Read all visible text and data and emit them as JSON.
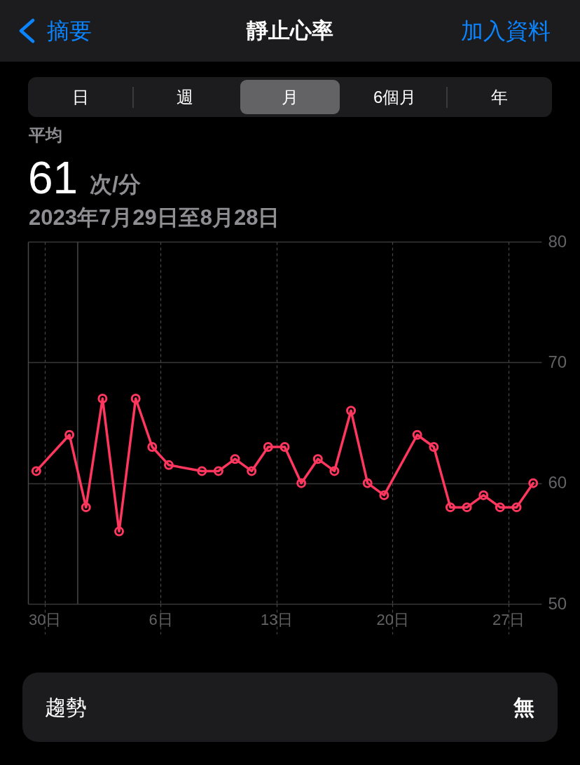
{
  "chart_data": {
    "type": "line",
    "title": "靜止心率",
    "subtitle": "2023年7月29日至8月28日",
    "annotations": [
      "摘要",
      "加入資料",
      "日",
      "週",
      "月",
      "6個月",
      "年",
      "平均",
      "61",
      "次/分",
      "趨勢",
      "無"
    ],
    "x": [
      "2023-07-29T12:00",
      "2023-07-31T12:00",
      "2023-08-01T12:00",
      "2023-08-02T12:00",
      "2023-08-03T12:00",
      "2023-08-04T12:00",
      "2023-08-05T12:00",
      "2023-08-06T12:00",
      "2023-08-08T12:00",
      "2023-08-09T12:00",
      "2023-08-10T12:00",
      "2023-08-11T12:00",
      "2023-08-12T12:00",
      "2023-08-13T12:00",
      "2023-08-14T12:00",
      "2023-08-15T12:00",
      "2023-08-16T12:00",
      "2023-08-17T12:00",
      "2023-08-18T12:00",
      "2023-08-19T12:00",
      "2023-08-21T12:00",
      "2023-08-22T12:00",
      "2023-08-23T12:00",
      "2023-08-24T12:00",
      "2023-08-25T12:00",
      "2023-08-26T12:00",
      "2023-08-27T12:00",
      "2023-08-28T12:00"
    ],
    "series": [
      {
        "color": "#ff375f",
        "values": [
          61,
          64,
          58,
          67,
          56,
          67,
          63,
          61.5,
          61,
          61,
          62,
          61,
          63,
          63,
          60,
          62,
          61,
          66,
          60,
          59,
          64,
          63,
          58,
          58,
          59,
          58,
          58,
          60
        ]
      }
    ],
    "xlim": [
      "2023-07-29",
      "2023-08-29"
    ],
    "xticks": [
      {
        "value": "2023-07-30",
        "label": "30日"
      },
      {
        "value": "2023-08-06",
        "label": "6日"
      },
      {
        "value": "2023-08-13",
        "label": "13日"
      },
      {
        "value": "2023-08-20",
        "label": "20日"
      },
      {
        "value": "2023-08-27",
        "label": "27日"
      }
    ],
    "ylim": [
      50,
      80
    ],
    "yticks": [
      50,
      60,
      70,
      80
    ],
    "grid": true,
    "ref_lines": [
      {
        "axis": "x",
        "value": "2023-08-01",
        "color": "#48484a"
      }
    ],
    "marker": "circle",
    "line_style": "solid"
  }
}
